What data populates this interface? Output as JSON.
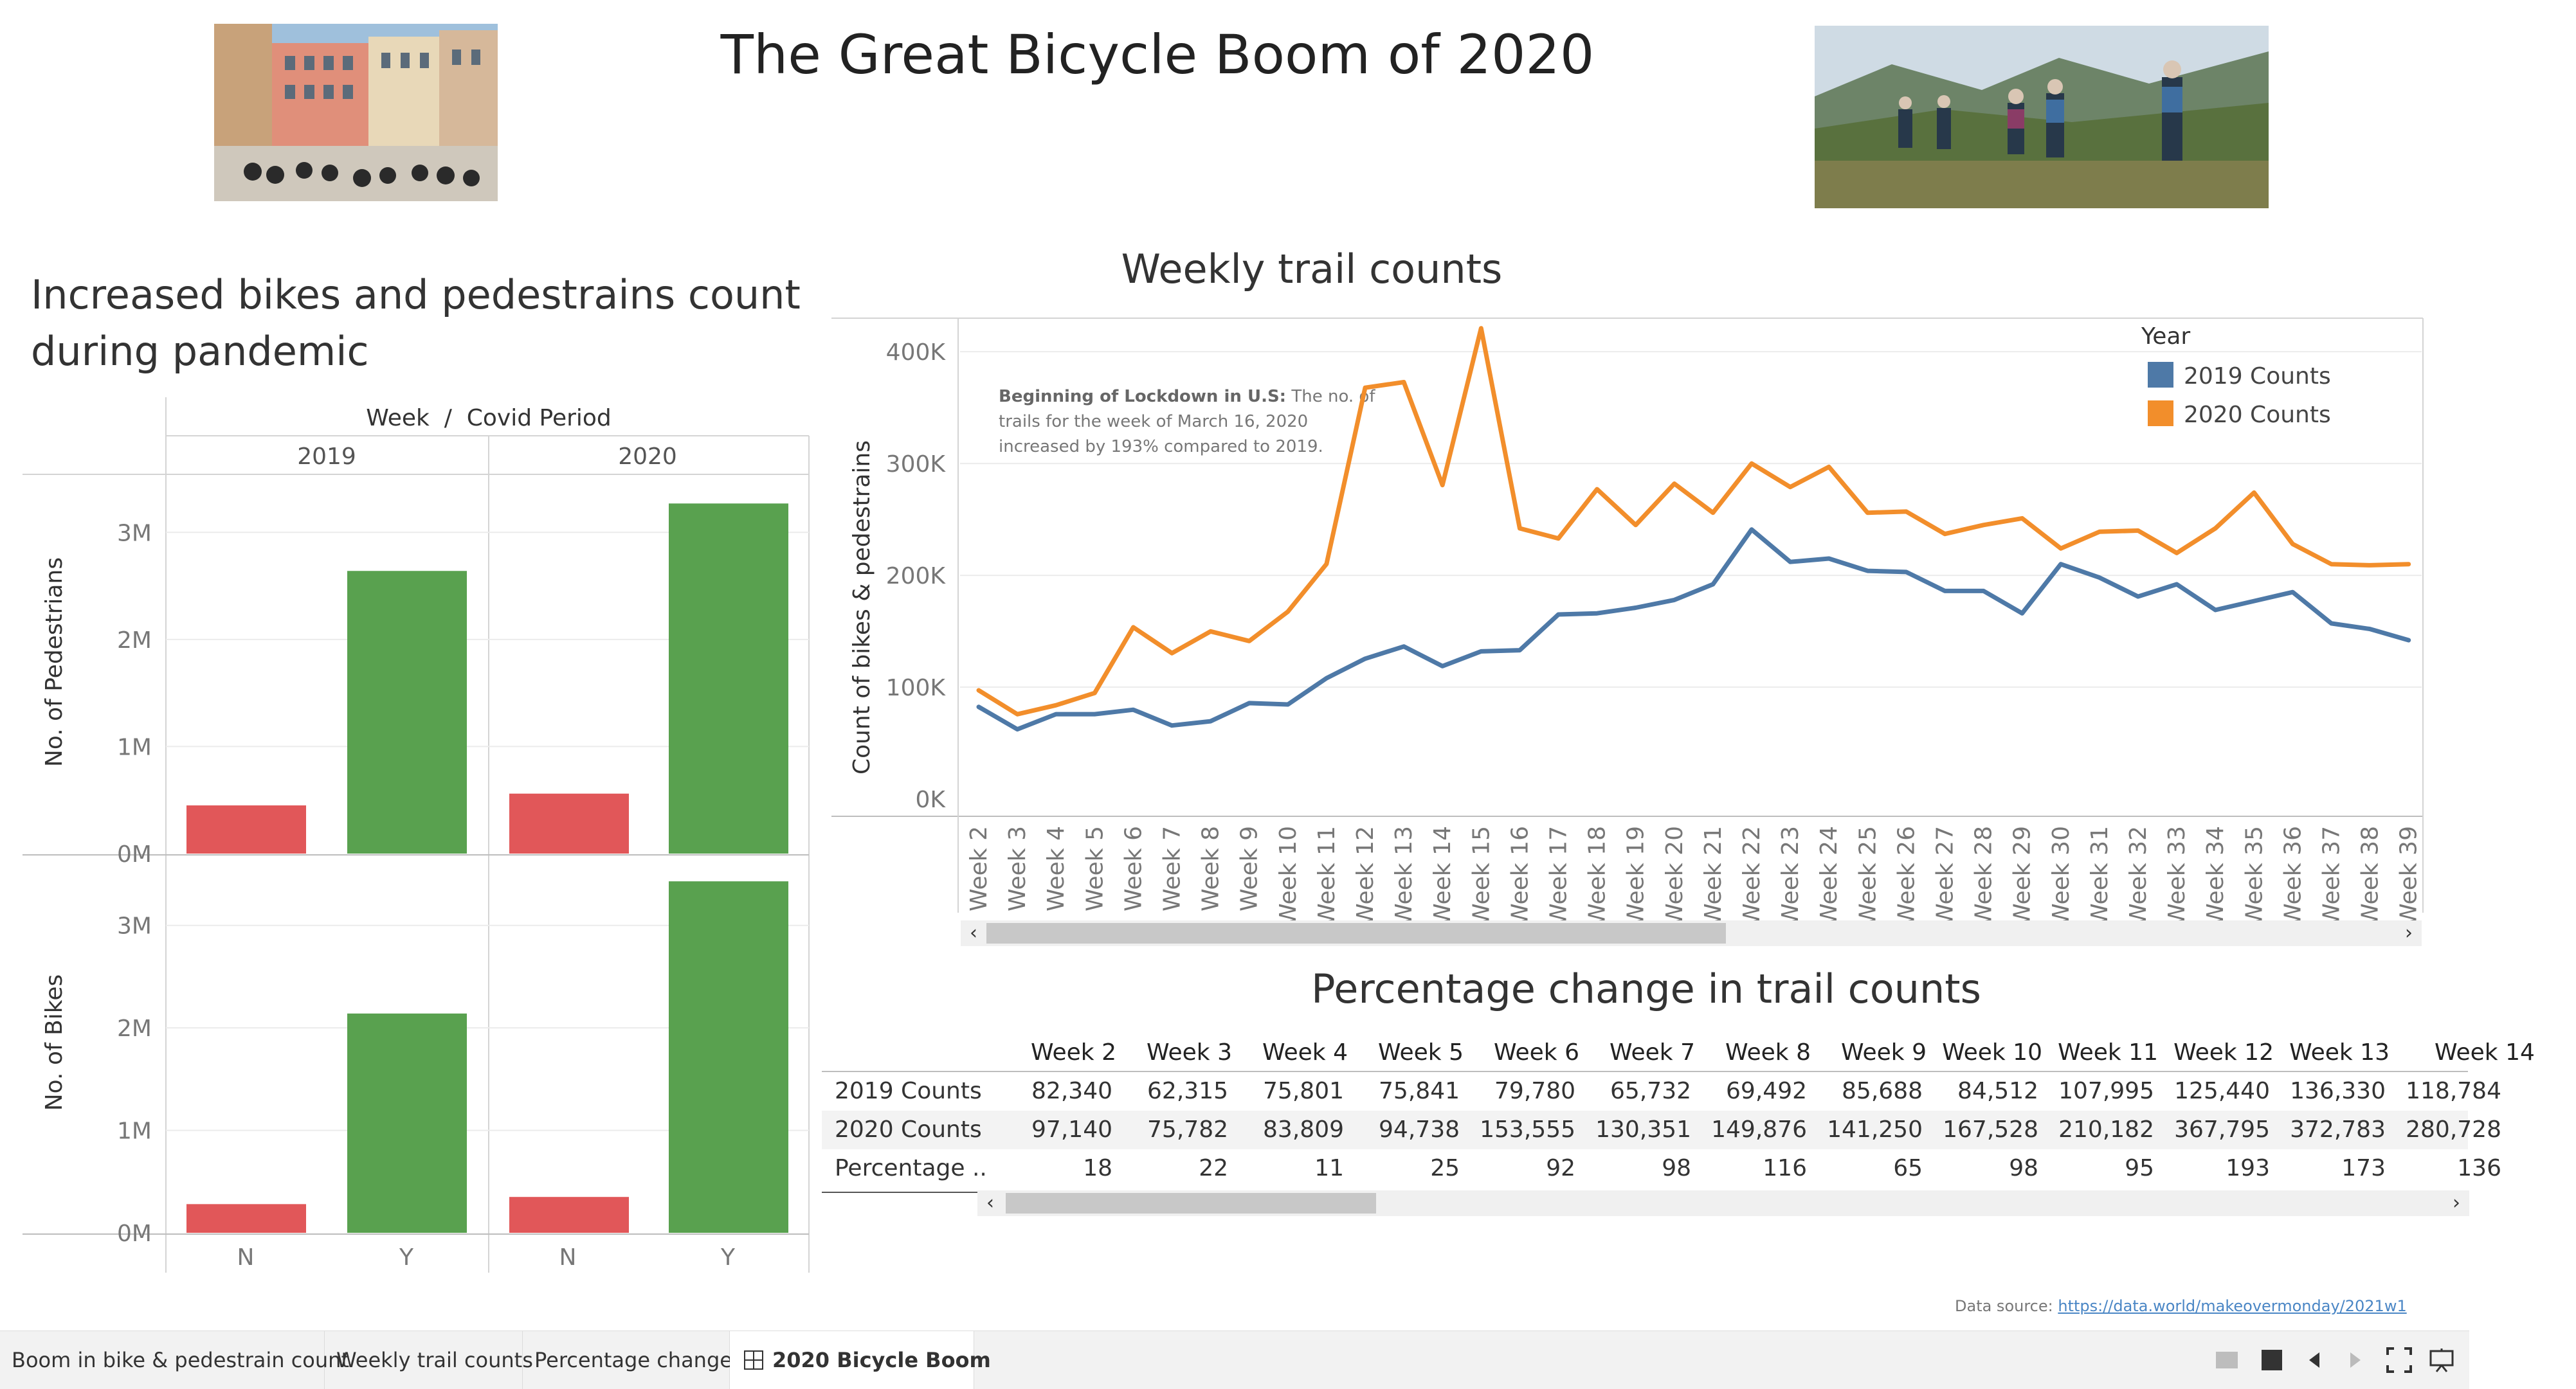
{
  "dashboard": {
    "title": "The Great Bicycle Boom of 2020"
  },
  "left_panel": {
    "title_line1": "Increased bikes and pedestrains count",
    "title_line2": "during pandemic",
    "header": "Week  /  Covid Period",
    "years": [
      "2019",
      "2020"
    ],
    "row_labels": [
      "No. of Pedestrians",
      "No. of Bikes"
    ],
    "y_ticks": [
      "3M",
      "2M",
      "1M",
      "0M"
    ],
    "x_labels": [
      "N",
      "Y",
      "N",
      "Y"
    ]
  },
  "weekly_chart": {
    "title": "Weekly trail counts",
    "ylabel": "Count of bikes & pedestrains",
    "y_ticks": [
      "400K",
      "300K",
      "200K",
      "100K",
      "0K"
    ],
    "annotation_bold": "Beginning of Lockdown in U.S:",
    "annotation_line1_rest": " The no. of",
    "annotation_line2": "trails for the week of March 16, 2020",
    "annotation_line3": "increased by 193% compared to 2019.",
    "legend_title": "Year",
    "legend": [
      "2019 Counts",
      "2020 Counts"
    ]
  },
  "pct_table": {
    "title": "Percentage change in trail counts",
    "columns": [
      "Week 2",
      "Week 3",
      "Week 4",
      "Week 5",
      "Week 6",
      "Week 7",
      "Week 8",
      "Week 9",
      "Week 10",
      "Week 11",
      "Week 12",
      "Week 13",
      "Week 14"
    ],
    "rows": [
      {
        "label": "2019 Counts",
        "values": [
          "82,340",
          "62,315",
          "75,801",
          "75,841",
          "79,780",
          "65,732",
          "69,492",
          "85,688",
          "84,512",
          "107,995",
          "125,440",
          "136,330",
          "118,784"
        ]
      },
      {
        "label": "2020 Counts",
        "values": [
          "97,140",
          "75,782",
          "83,809",
          "94,738",
          "153,555",
          "130,351",
          "149,876",
          "141,250",
          "167,528",
          "210,182",
          "367,795",
          "372,783",
          "280,728"
        ]
      },
      {
        "label": "Percentage ..",
        "values": [
          "18",
          "22",
          "11",
          "25",
          "92",
          "98",
          "116",
          "65",
          "98",
          "95",
          "193",
          "173",
          "136"
        ]
      }
    ]
  },
  "footer": {
    "datasource_label": "Data source: ",
    "datasource_link": "https://data.world/makeovermonday/2021w1"
  },
  "tabs": [
    "Boom in bike & pedestrain count",
    "Weekly trail counts",
    "Percentage change",
    "2020 Bicycle Boom"
  ],
  "colors": {
    "series_2019": "#4e79a7",
    "series_2020": "#f28e2b",
    "covid_no": "#e15759",
    "covid_yes": "#59a14f"
  },
  "chart_data": [
    {
      "type": "bar",
      "title": "Increased bikes and pedestrains count during pandemic",
      "columns_header": "Week / Covid Period",
      "categories": [
        "2019 N",
        "2019 Y",
        "2020 N",
        "2020 Y"
      ],
      "series": [
        {
          "name": "No. of Pedestrians",
          "values": [
            450000,
            2640000,
            560000,
            3270000
          ]
        },
        {
          "name": "No. of Bikes",
          "values": [
            280000,
            2140000,
            350000,
            3430000
          ]
        }
      ],
      "ylim": [
        0,
        3500000
      ],
      "y_ticks": [
        "0M",
        "1M",
        "2M",
        "3M"
      ]
    },
    {
      "type": "line",
      "title": "Weekly trail counts",
      "ylabel": "Count of bikes & pedestrains",
      "x": [
        "Week 2",
        "Week 3",
        "Week 4",
        "Week 5",
        "Week 6",
        "Week 7",
        "Week 8",
        "Week 9",
        "Week 10",
        "Week 11",
        "Week 12",
        "Week 13",
        "Week 14",
        "Week 15",
        "Week 16",
        "Week 17",
        "Week 18",
        "Week 19",
        "Week 20",
        "Week 21",
        "Week 22",
        "Week 23",
        "Week 24",
        "Week 25",
        "Week 26",
        "Week 27",
        "Week 28",
        "Week 29",
        "Week 30",
        "Week 31",
        "Week 32",
        "Week 33",
        "Week 34",
        "Week 35",
        "Week 36",
        "Week 37",
        "Week 38",
        "Week 39"
      ],
      "series": [
        {
          "name": "2019 Counts",
          "values": [
            82340,
            62315,
            75801,
            75841,
            79780,
            65732,
            69492,
            85688,
            84512,
            107995,
            125440,
            136330,
            118784,
            132000,
            133000,
            165000,
            166000,
            171000,
            178000,
            192000,
            241000,
            212000,
            215000,
            204000,
            203000,
            186000,
            186000,
            166000,
            210000,
            198000,
            181000,
            192000,
            169000,
            177000,
            185000,
            157000,
            152000,
            142000
          ]
        },
        {
          "name": "2020 Counts",
          "values": [
            97140,
            75782,
            83809,
            94738,
            153555,
            130351,
            149876,
            141250,
            167528,
            210182,
            367795,
            372783,
            280728,
            421000,
            242000,
            233000,
            277000,
            245000,
            282000,
            256000,
            300000,
            279000,
            297000,
            256000,
            257000,
            237000,
            245000,
            251000,
            224000,
            239000,
            240000,
            220000,
            242000,
            274000,
            228000,
            210000,
            209000,
            210000
          ]
        }
      ],
      "ylim": [
        0,
        430000
      ],
      "legend_title": "Year",
      "legend_position": "top-right"
    }
  ]
}
